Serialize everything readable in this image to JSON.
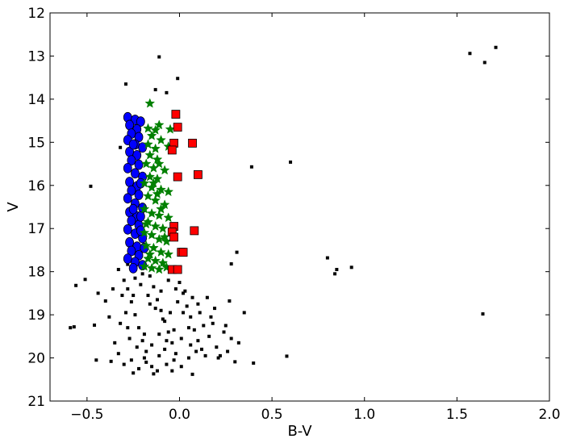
{
  "chart_data": {
    "type": "scatter",
    "title": "",
    "xlabel": "B-V",
    "ylabel": "V",
    "xlim": [
      -0.7,
      2.0
    ],
    "ylim": [
      21,
      12
    ],
    "y_inverted": true,
    "grid": false,
    "xticks": [
      -0.5,
      0.0,
      0.5,
      1.0,
      1.5,
      2.0
    ],
    "xtick_labels": [
      "−0.5",
      "0.0",
      "0.5",
      "1.0",
      "1.5",
      "2.0"
    ],
    "yticks": [
      12,
      13,
      14,
      15,
      16,
      17,
      18,
      19,
      20,
      21
    ],
    "ytick_labels": [
      "12",
      "13",
      "14",
      "15",
      "16",
      "17",
      "18",
      "19",
      "20",
      "21"
    ],
    "series": [
      {
        "marker": "square-small",
        "color": "#000000",
        "points": [
          [
            -0.11,
            13.02
          ],
          [
            -0.01,
            13.52
          ],
          [
            -0.29,
            13.65
          ],
          [
            -0.13,
            13.78
          ],
          [
            -0.07,
            13.85
          ],
          [
            -0.32,
            15.12
          ],
          [
            -0.48,
            16.02
          ],
          [
            0.39,
            15.57
          ],
          [
            0.6,
            15.46
          ],
          [
            1.57,
            12.94
          ],
          [
            1.71,
            12.8
          ],
          [
            1.65,
            13.15
          ],
          [
            0.8,
            17.68
          ],
          [
            0.84,
            18.05
          ],
          [
            0.85,
            17.95
          ],
          [
            0.93,
            17.9
          ],
          [
            1.64,
            18.98
          ],
          [
            0.31,
            17.55
          ],
          [
            0.28,
            17.82
          ],
          [
            0.27,
            18.68
          ],
          [
            0.35,
            18.95
          ],
          [
            0.4,
            20.12
          ],
          [
            0.58,
            19.96
          ],
          [
            -0.28,
            17.83
          ],
          [
            -0.33,
            17.95
          ],
          [
            -0.56,
            18.32
          ],
          [
            -0.51,
            18.18
          ],
          [
            -0.57,
            19.28
          ],
          [
            -0.59,
            19.3
          ],
          [
            -0.46,
            19.24
          ],
          [
            -0.44,
            18.5
          ],
          [
            -0.4,
            18.68
          ],
          [
            -0.38,
            19.05
          ],
          [
            -0.32,
            19.2
          ],
          [
            -0.45,
            20.05
          ],
          [
            -0.37,
            20.08
          ],
          [
            -0.3,
            20.15
          ],
          [
            -0.25,
            20.35
          ],
          [
            -0.14,
            20.37
          ],
          [
            -0.04,
            20.3
          ],
          [
            0.07,
            20.38
          ],
          [
            0.3,
            20.09
          ],
          [
            -0.3,
            18.2
          ],
          [
            -0.28,
            18.4
          ],
          [
            -0.26,
            18.7
          ],
          [
            -0.24,
            19.0
          ],
          [
            -0.22,
            19.3
          ],
          [
            -0.2,
            19.6
          ],
          [
            -0.18,
            19.85
          ],
          [
            -0.16,
            18.1
          ],
          [
            -0.14,
            18.35
          ],
          [
            -0.12,
            18.65
          ],
          [
            -0.1,
            18.9
          ],
          [
            -0.08,
            19.15
          ],
          [
            -0.06,
            19.4
          ],
          [
            -0.04,
            19.65
          ],
          [
            -0.02,
            19.9
          ],
          [
            0.0,
            18.25
          ],
          [
            0.02,
            18.5
          ],
          [
            0.04,
            18.8
          ],
          [
            0.06,
            19.05
          ],
          [
            0.08,
            19.35
          ],
          [
            0.1,
            19.6
          ],
          [
            0.12,
            19.8
          ],
          [
            0.14,
            19.95
          ],
          [
            0.16,
            19.5
          ],
          [
            0.18,
            19.2
          ],
          [
            0.2,
            19.75
          ],
          [
            0.22,
            19.95
          ],
          [
            0.24,
            19.4
          ],
          [
            0.19,
            18.85
          ],
          [
            0.15,
            18.6
          ],
          [
            -0.27,
            19.55
          ],
          [
            -0.23,
            19.75
          ],
          [
            -0.19,
            20.0
          ],
          [
            -0.15,
            20.2
          ],
          [
            -0.11,
            19.95
          ],
          [
            -0.07,
            20.15
          ],
          [
            -0.03,
            20.05
          ],
          [
            0.01,
            20.2
          ],
          [
            0.05,
            20.0
          ],
          [
            0.09,
            19.85
          ],
          [
            -0.29,
            18.95
          ],
          [
            -0.25,
            18.55
          ],
          [
            -0.21,
            18.3
          ],
          [
            -0.17,
            18.55
          ],
          [
            -0.13,
            18.85
          ],
          [
            -0.09,
            19.1
          ],
          [
            -0.05,
            18.95
          ],
          [
            -0.01,
            18.7
          ],
          [
            0.03,
            18.45
          ],
          [
            0.07,
            18.6
          ],
          [
            0.11,
            18.95
          ],
          [
            0.13,
            19.25
          ],
          [
            0.17,
            19.05
          ],
          [
            -0.19,
            19.45
          ],
          [
            -0.15,
            19.7
          ],
          [
            -0.11,
            19.45
          ],
          [
            -0.07,
            19.6
          ],
          [
            -0.03,
            19.35
          ],
          [
            0.01,
            19.55
          ],
          [
            0.05,
            19.3
          ],
          [
            -0.26,
            20.05
          ],
          [
            -0.22,
            20.25
          ],
          [
            -0.18,
            20.1
          ],
          [
            -0.12,
            20.3
          ],
          [
            -0.08,
            19.8
          ],
          [
            -0.24,
            18.15
          ],
          [
            -0.2,
            18.05
          ],
          [
            -0.16,
            18.75
          ],
          [
            -0.1,
            18.45
          ],
          [
            -0.06,
            18.2
          ],
          [
            -0.02,
            18.4
          ],
          [
            0.02,
            18.95
          ],
          [
            0.06,
            19.7
          ],
          [
            0.1,
            18.75
          ],
          [
            -0.28,
            19.3
          ],
          [
            0.25,
            19.25
          ],
          [
            0.26,
            19.85
          ],
          [
            0.21,
            20.0
          ],
          [
            -0.31,
            18.55
          ],
          [
            -0.35,
            19.65
          ],
          [
            -0.33,
            19.9
          ],
          [
            -0.36,
            18.4
          ],
          [
            0.32,
            19.65
          ],
          [
            0.28,
            19.55
          ]
        ]
      },
      {
        "marker": "circle",
        "color": "#0000ff",
        "points": [
          [
            -0.28,
            14.42
          ],
          [
            -0.24,
            14.48
          ],
          [
            -0.21,
            14.52
          ],
          [
            -0.27,
            14.6
          ],
          [
            -0.23,
            14.7
          ],
          [
            -0.26,
            14.8
          ],
          [
            -0.22,
            14.88
          ],
          [
            -0.28,
            14.95
          ],
          [
            -0.24,
            15.05
          ],
          [
            -0.2,
            15.12
          ],
          [
            -0.27,
            15.22
          ],
          [
            -0.23,
            15.3
          ],
          [
            -0.26,
            15.42
          ],
          [
            -0.22,
            15.52
          ],
          [
            -0.28,
            15.6
          ],
          [
            -0.24,
            15.72
          ],
          [
            -0.2,
            15.8
          ],
          [
            -0.27,
            15.92
          ],
          [
            -0.23,
            16.02
          ],
          [
            -0.26,
            16.12
          ],
          [
            -0.22,
            16.22
          ],
          [
            -0.28,
            16.3
          ],
          [
            -0.24,
            16.42
          ],
          [
            -0.2,
            16.52
          ],
          [
            -0.27,
            16.62
          ],
          [
            -0.23,
            16.72
          ],
          [
            -0.26,
            16.82
          ],
          [
            -0.22,
            16.92
          ],
          [
            -0.28,
            17.02
          ],
          [
            -0.24,
            17.12
          ],
          [
            -0.2,
            17.22
          ],
          [
            -0.27,
            17.32
          ],
          [
            -0.23,
            17.42
          ],
          [
            -0.26,
            17.52
          ],
          [
            -0.22,
            17.62
          ],
          [
            -0.28,
            17.7
          ],
          [
            -0.24,
            17.78
          ],
          [
            -0.2,
            17.85
          ],
          [
            -0.25,
            17.92
          ],
          [
            -0.21,
            16.72
          ],
          [
            -0.19,
            17.45
          ],
          [
            -0.21,
            15.95
          ],
          [
            -0.25,
            16.55
          ],
          [
            -0.21,
            17.05
          ],
          [
            -0.25,
            15.05
          ]
        ]
      },
      {
        "marker": "star",
        "color": "#008000",
        "points": [
          [
            -0.16,
            14.1
          ],
          [
            -0.11,
            14.6
          ],
          [
            -0.17,
            14.68
          ],
          [
            -0.13,
            14.72
          ],
          [
            -0.05,
            14.7
          ],
          [
            -0.15,
            14.85
          ],
          [
            -0.1,
            14.95
          ],
          [
            -0.17,
            15.05
          ],
          [
            -0.13,
            15.15
          ],
          [
            -0.06,
            15.1
          ],
          [
            -0.16,
            15.3
          ],
          [
            -0.12,
            15.4
          ],
          [
            -0.18,
            15.5
          ],
          [
            -0.14,
            15.6
          ],
          [
            -0.08,
            15.65
          ],
          [
            -0.16,
            15.8
          ],
          [
            -0.12,
            15.85
          ],
          [
            -0.19,
            15.95
          ],
          [
            -0.15,
            16.05
          ],
          [
            -0.1,
            16.1
          ],
          [
            -0.06,
            16.15
          ],
          [
            -0.17,
            16.25
          ],
          [
            -0.13,
            16.35
          ],
          [
            -0.08,
            16.45
          ],
          [
            -0.19,
            16.55
          ],
          [
            -0.15,
            16.65
          ],
          [
            -0.11,
            16.7
          ],
          [
            -0.06,
            16.75
          ],
          [
            -0.17,
            16.85
          ],
          [
            -0.13,
            16.95
          ],
          [
            -0.09,
            17.0
          ],
          [
            -0.19,
            17.1
          ],
          [
            -0.15,
            17.15
          ],
          [
            -0.11,
            17.25
          ],
          [
            -0.07,
            17.3
          ],
          [
            -0.18,
            17.4
          ],
          [
            -0.14,
            17.45
          ],
          [
            -0.1,
            17.55
          ],
          [
            -0.06,
            17.6
          ],
          [
            -0.17,
            17.7
          ],
          [
            -0.13,
            17.75
          ],
          [
            -0.09,
            17.8
          ],
          [
            -0.19,
            17.88
          ],
          [
            -0.15,
            17.92
          ],
          [
            -0.11,
            17.95
          ],
          [
            -0.07,
            17.9
          ],
          [
            -0.14,
            15.95
          ],
          [
            -0.1,
            16.55
          ],
          [
            -0.16,
            17.6
          ],
          [
            -0.08,
            17.2
          ],
          [
            -0.12,
            16.2
          ],
          [
            -0.18,
            16.9
          ],
          [
            -0.11,
            15.5
          ]
        ]
      },
      {
        "marker": "square",
        "color": "#ff0000",
        "points": [
          [
            -0.02,
            14.35
          ],
          [
            -0.01,
            14.65
          ],
          [
            -0.03,
            15.02
          ],
          [
            -0.04,
            15.18
          ],
          [
            0.07,
            15.02
          ],
          [
            0.1,
            15.75
          ],
          [
            -0.01,
            15.8
          ],
          [
            -0.03,
            16.95
          ],
          [
            -0.04,
            17.08
          ],
          [
            -0.03,
            17.2
          ],
          [
            0.08,
            17.05
          ],
          [
            0.01,
            17.55
          ],
          [
            0.02,
            17.55
          ],
          [
            -0.04,
            17.95
          ],
          [
            -0.01,
            17.95
          ]
        ]
      }
    ]
  }
}
